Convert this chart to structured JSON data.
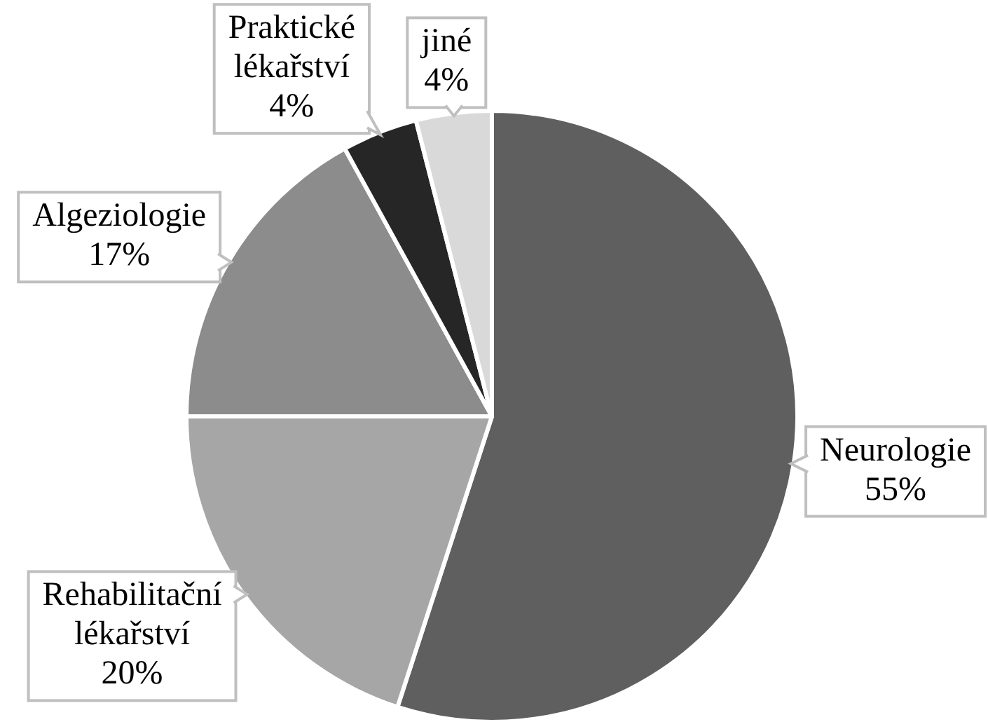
{
  "chart_data": {
    "type": "pie",
    "categories": [
      "Neurologie",
      "Rehabilitační lékařství",
      "Algeziologie",
      "Praktické lékařství",
      "jiné"
    ],
    "values": [
      55,
      20,
      17,
      4,
      4
    ],
    "colors": [
      "#5f5f5f",
      "#a6a6a6",
      "#8c8c8c",
      "#262626",
      "#d9d9d9"
    ],
    "value_labels": [
      "55%",
      "20%",
      "17%",
      "4%",
      "4%"
    ]
  }
}
